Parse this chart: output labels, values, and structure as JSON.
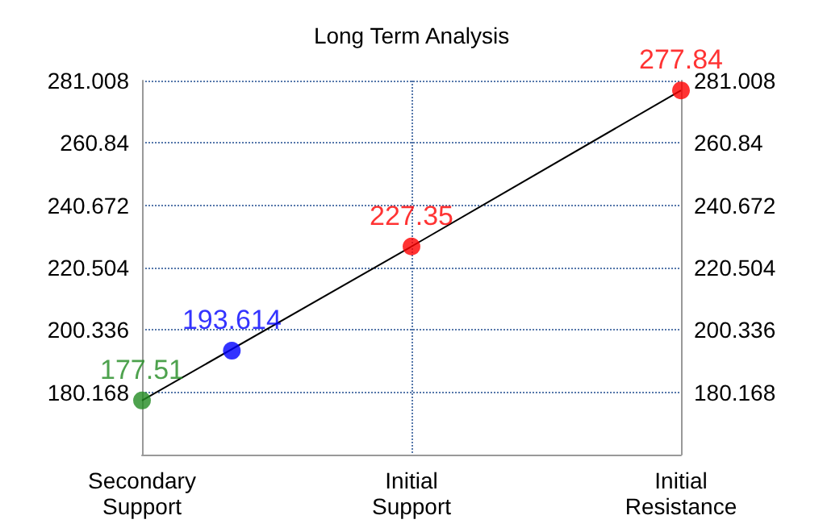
{
  "chart_data": {
    "type": "line",
    "title": "Long Term Analysis",
    "categories": [
      "Secondary\nSupport",
      null,
      null,
      "Initial\nSupport",
      null,
      null,
      "Initial\nResistance"
    ],
    "ylim": [
      160,
      281.008
    ],
    "yticks": [
      180.168,
      200.336,
      220.504,
      240.672,
      260.84,
      281.008
    ],
    "y2lim": [
      160,
      281.008
    ],
    "y2ticks": [
      180.168,
      200.336,
      220.504,
      240.672,
      260.84,
      281.008
    ],
    "grid": true,
    "series": [
      {
        "color": "#000000",
        "marker": "none",
        "values": [
          177.51,
          null,
          null,
          227.35,
          null,
          null,
          277.84
        ]
      },
      {
        "type": "scatter",
        "marker": "circle",
        "values": [
          177.51,
          193.614,
          null,
          227.35,
          null,
          null,
          277.84
        ],
        "colors": [
          "#228b22",
          "#0000ff",
          null,
          "#ff0000",
          null,
          null,
          "#ff0000"
        ],
        "value_labels": [
          "177.51",
          "193.614",
          null,
          "227.35",
          null,
          null,
          "277.84"
        ]
      }
    ]
  }
}
